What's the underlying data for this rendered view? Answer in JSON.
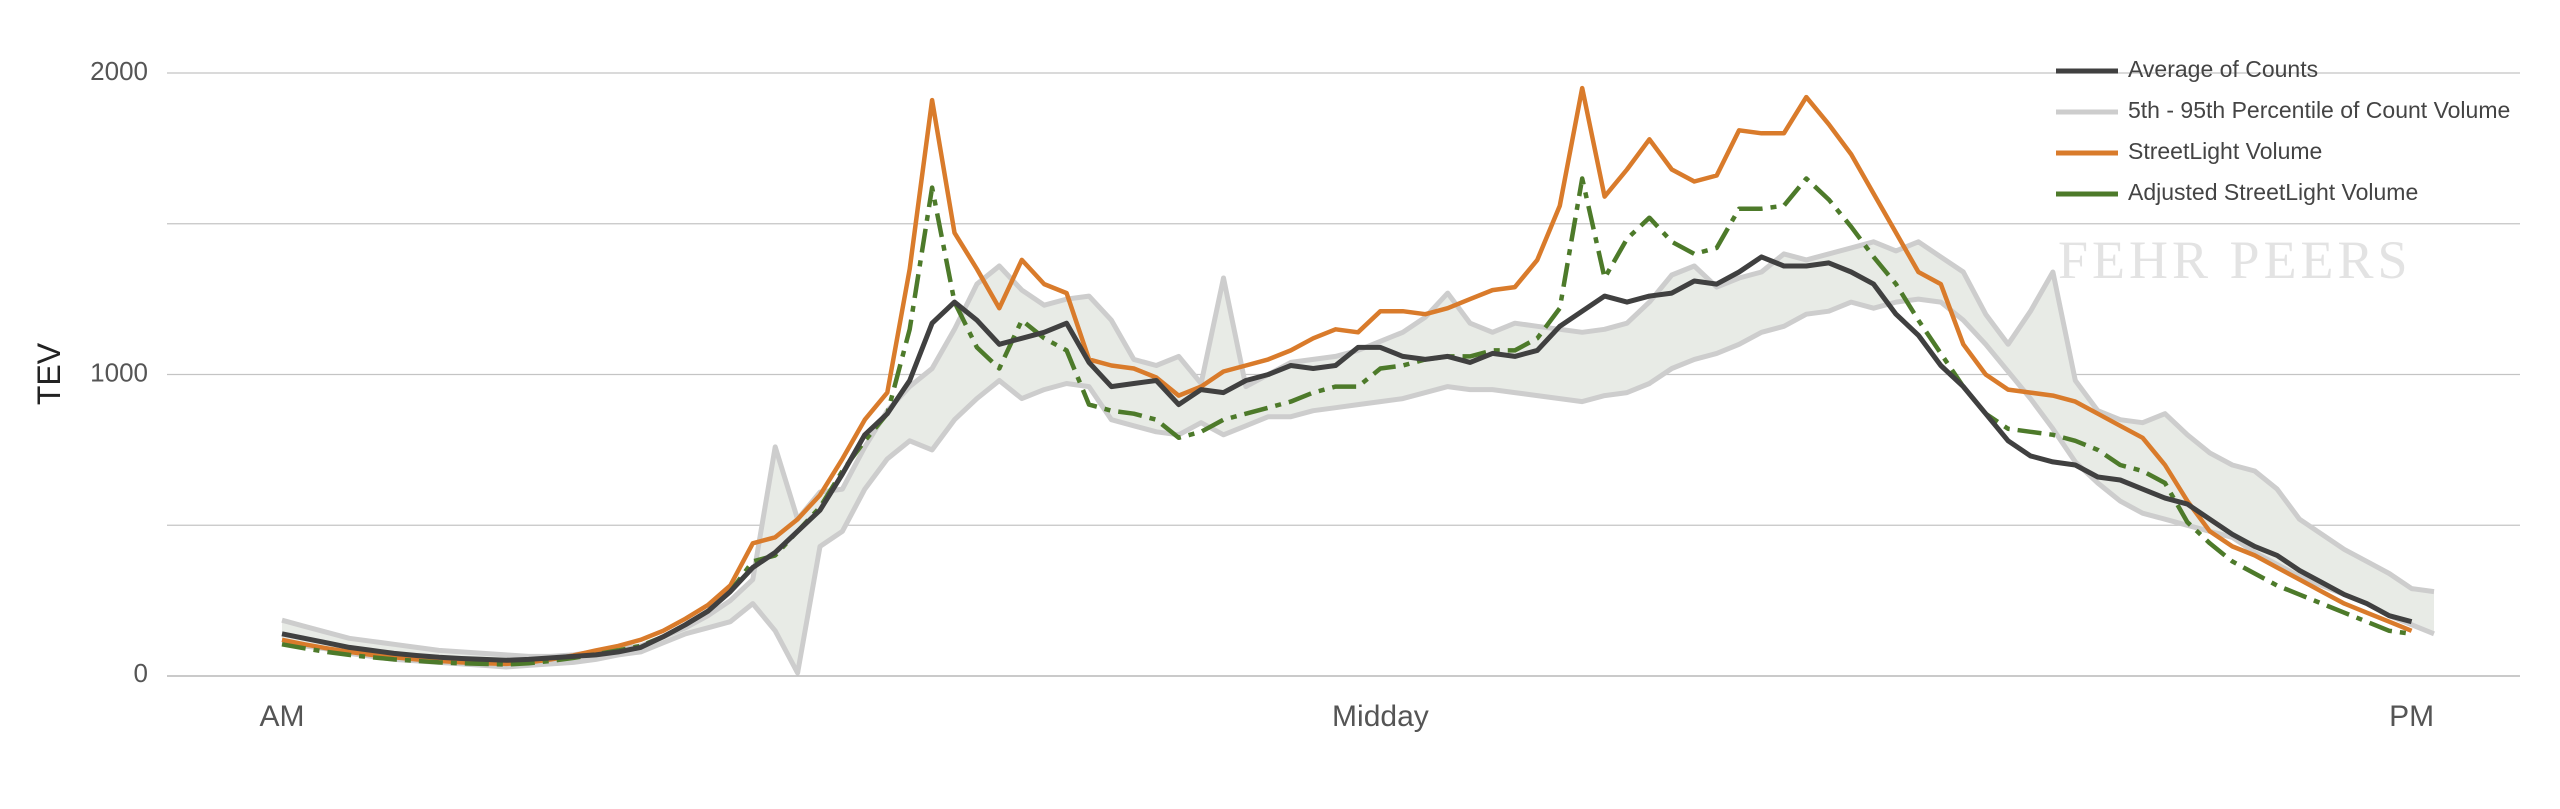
{
  "chart_data": {
    "type": "line",
    "ylabel": "TEV",
    "ylim": [
      0,
      2000
    ],
    "grid": true,
    "legend_position": "top-right",
    "watermark": "FEHR PEERS",
    "y_ticks": [
      {
        "value": 0,
        "label": "0"
      },
      {
        "value": 1000,
        "label": "1000"
      },
      {
        "value": 2000,
        "label": "2000"
      }
    ],
    "x_labels": [
      {
        "index": 0,
        "label": "AM"
      },
      {
        "index": 49,
        "label": "Midday"
      },
      {
        "index": 95,
        "label": "PM"
      }
    ],
    "colors": {
      "average": "#404040",
      "band": "#cdcdcd",
      "band_fill": "#e8ebe6",
      "streetlight": "#d97b2b",
      "adjusted": "#4d7a2a"
    },
    "legend": [
      {
        "key": "average",
        "label": "Average of Counts"
      },
      {
        "key": "band",
        "label": "5th - 95th Percentile of Count Volume"
      },
      {
        "key": "streetlight",
        "label": "StreetLight Volume"
      },
      {
        "key": "adjusted",
        "label": "Adjusted StreetLight Volume"
      }
    ],
    "series": [
      {
        "key": "p95",
        "values": [
          185,
          165,
          145,
          125,
          115,
          105,
          95,
          85,
          80,
          75,
          70,
          65,
          65,
          70,
          80,
          90,
          100,
          130,
          160,
          200,
          250,
          320,
          760,
          520,
          610,
          620,
          760,
          880,
          960,
          1020,
          1150,
          1300,
          1360,
          1280,
          1230,
          1250,
          1260,
          1180,
          1050,
          1030,
          1060,
          970,
          1320,
          960,
          1000,
          1040,
          1050,
          1060,
          1080,
          1110,
          1140,
          1190,
          1270,
          1170,
          1140,
          1170,
          1160,
          1150,
          1140,
          1150,
          1170,
          1240,
          1330,
          1360,
          1290,
          1320,
          1340,
          1400,
          1380,
          1400,
          1420,
          1440,
          1410,
          1440,
          1390,
          1340,
          1200,
          1100,
          1210,
          1340,
          980,
          880,
          850,
          840,
          870,
          800,
          740,
          700,
          680,
          620,
          520,
          470,
          420,
          380,
          340,
          290,
          280
        ]
      },
      {
        "key": "p5",
        "values": [
          110,
          100,
          90,
          75,
          65,
          55,
          50,
          45,
          40,
          35,
          30,
          35,
          40,
          45,
          55,
          70,
          80,
          110,
          140,
          160,
          180,
          240,
          150,
          10,
          430,
          480,
          620,
          720,
          780,
          750,
          850,
          920,
          980,
          920,
          950,
          970,
          960,
          850,
          830,
          810,
          800,
          840,
          800,
          830,
          860,
          860,
          880,
          890,
          900,
          910,
          920,
          940,
          960,
          950,
          950,
          940,
          930,
          920,
          910,
          930,
          940,
          970,
          1020,
          1050,
          1070,
          1100,
          1140,
          1160,
          1200,
          1210,
          1240,
          1220,
          1240,
          1250,
          1240,
          1180,
          1100,
          1010,
          920,
          820,
          710,
          640,
          580,
          540,
          520,
          500,
          480,
          460,
          410,
          370,
          330,
          300,
          270,
          240,
          200,
          170,
          140
        ]
      },
      {
        "key": "average",
        "values": [
          140,
          125,
          110,
          95,
          85,
          75,
          68,
          62,
          58,
          55,
          52,
          55,
          60,
          65,
          70,
          80,
          95,
          130,
          170,
          215,
          280,
          360,
          410,
          480,
          550,
          670,
          800,
          870,
          980,
          1170,
          1240,
          1180,
          1100,
          1120,
          1140,
          1170,
          1040,
          960,
          970,
          980,
          900,
          950,
          940,
          980,
          1000,
          1030,
          1020,
          1030,
          1090,
          1090,
          1060,
          1050,
          1060,
          1040,
          1070,
          1060,
          1080,
          1160,
          1210,
          1260,
          1240,
          1260,
          1270,
          1310,
          1300,
          1340,
          1390,
          1360,
          1360,
          1370,
          1340,
          1300,
          1200,
          1130,
          1030,
          960,
          870,
          780,
          730,
          710,
          700,
          660,
          650,
          620,
          590,
          570,
          520,
          470,
          430,
          400,
          350,
          310,
          270,
          240,
          200,
          180
        ]
      },
      {
        "key": "streetlight",
        "values": [
          120,
          105,
          92,
          80,
          70,
          62,
          55,
          50,
          45,
          42,
          40,
          45,
          55,
          68,
          85,
          100,
          120,
          150,
          190,
          235,
          300,
          440,
          460,
          520,
          600,
          720,
          850,
          940,
          1350,
          1910,
          1470,
          1350,
          1220,
          1380,
          1300,
          1270,
          1050,
          1030,
          1020,
          990,
          930,
          960,
          1010,
          1030,
          1050,
          1080,
          1120,
          1150,
          1140,
          1210,
          1210,
          1200,
          1220,
          1250,
          1280,
          1290,
          1380,
          1560,
          1950,
          1590,
          1680,
          1780,
          1680,
          1640,
          1660,
          1810,
          1800,
          1800,
          1920,
          1830,
          1730,
          1600,
          1470,
          1340,
          1300,
          1100,
          1000,
          950,
          940,
          930,
          910,
          870,
          830,
          790,
          700,
          580,
          480,
          430,
          400,
          360,
          320,
          280,
          240,
          210,
          180,
          150
        ]
      },
      {
        "key": "adjusted",
        "values": [
          105,
          92,
          80,
          70,
          62,
          55,
          50,
          45,
          42,
          40,
          38,
          42,
          50,
          60,
          72,
          85,
          100,
          130,
          170,
          215,
          280,
          380,
          400,
          480,
          560,
          680,
          780,
          870,
          1150,
          1620,
          1240,
          1090,
          1020,
          1180,
          1120,
          1080,
          900,
          880,
          870,
          850,
          790,
          810,
          850,
          870,
          890,
          910,
          940,
          960,
          960,
          1020,
          1030,
          1050,
          1060,
          1060,
          1080,
          1080,
          1120,
          1220,
          1650,
          1320,
          1450,
          1520,
          1440,
          1400,
          1420,
          1550,
          1550,
          1560,
          1650,
          1580,
          1490,
          1390,
          1300,
          1180,
          1070,
          960,
          870,
          820,
          810,
          800,
          780,
          750,
          700,
          680,
          640,
          510,
          440,
          380,
          340,
          300,
          270,
          240,
          210,
          180,
          150,
          140
        ]
      }
    ]
  }
}
